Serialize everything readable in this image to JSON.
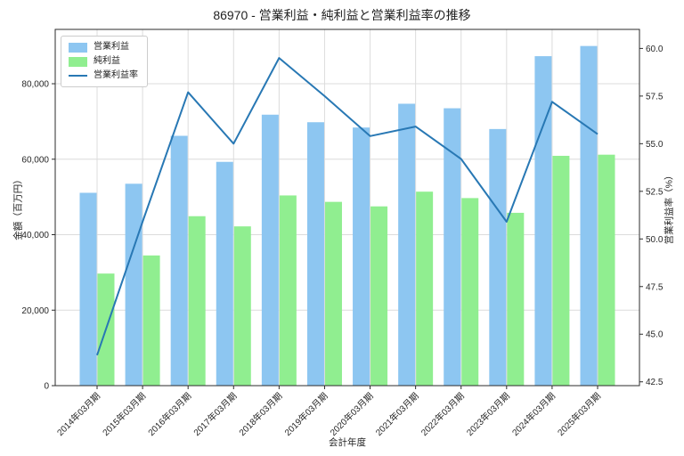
{
  "title": "86970 - 営業利益・純利益と営業利益率の推移",
  "chart_data": {
    "type": "bar+line",
    "title": "86970 - 営業利益・純利益と営業利益率の推移",
    "xlabel": "会計年度",
    "ylabel_left": "金額（百万円）",
    "ylabel_right": "営業利益率（%）",
    "categories": [
      "2014年03月期",
      "2015年03月期",
      "2016年03月期",
      "2017年03月期",
      "2018年03月期",
      "2019年03月期",
      "2020年03月期",
      "2021年03月期",
      "2022年03月期",
      "2023年03月期",
      "2024年03月期",
      "2025年03月期"
    ],
    "series": [
      {
        "name": "営業利益",
        "type": "bar",
        "axis": "left",
        "color": "#8DC6F1",
        "values": [
          51100,
          53500,
          66200,
          59300,
          71800,
          69800,
          68400,
          74700,
          73500,
          68000,
          87300,
          90000
        ]
      },
      {
        "name": "純利益",
        "type": "bar",
        "axis": "left",
        "color": "#90EE90",
        "values": [
          29700,
          34500,
          44900,
          42200,
          50400,
          48700,
          47500,
          51400,
          49700,
          45800,
          60900,
          61200
        ]
      },
      {
        "name": "営業利益率",
        "type": "line",
        "axis": "right",
        "color": "#2878B4",
        "values": [
          43.9,
          50.9,
          57.7,
          55.0,
          59.5,
          57.5,
          55.4,
          55.9,
          54.2,
          50.9,
          57.2,
          55.5
        ]
      }
    ],
    "left_ticks": [
      "0",
      "20,000",
      "40,000",
      "60,000",
      "80,000"
    ],
    "left_tick_values": [
      0,
      20000,
      40000,
      60000,
      80000
    ],
    "left_range": [
      0,
      94400
    ],
    "right_ticks": [
      "42.5",
      "45.0",
      "47.5",
      "50.0",
      "52.5",
      "55.0",
      "57.5",
      "60.0"
    ],
    "right_tick_values": [
      42.5,
      45.0,
      47.5,
      50.0,
      52.5,
      55.0,
      57.5,
      60.0
    ],
    "right_range": [
      42.3,
      61.0
    ],
    "grid": true,
    "legend_position": "upper left",
    "colors": {
      "grid": "#dcdcdc",
      "spine": "#2b2b2b",
      "text": "#262626"
    }
  }
}
